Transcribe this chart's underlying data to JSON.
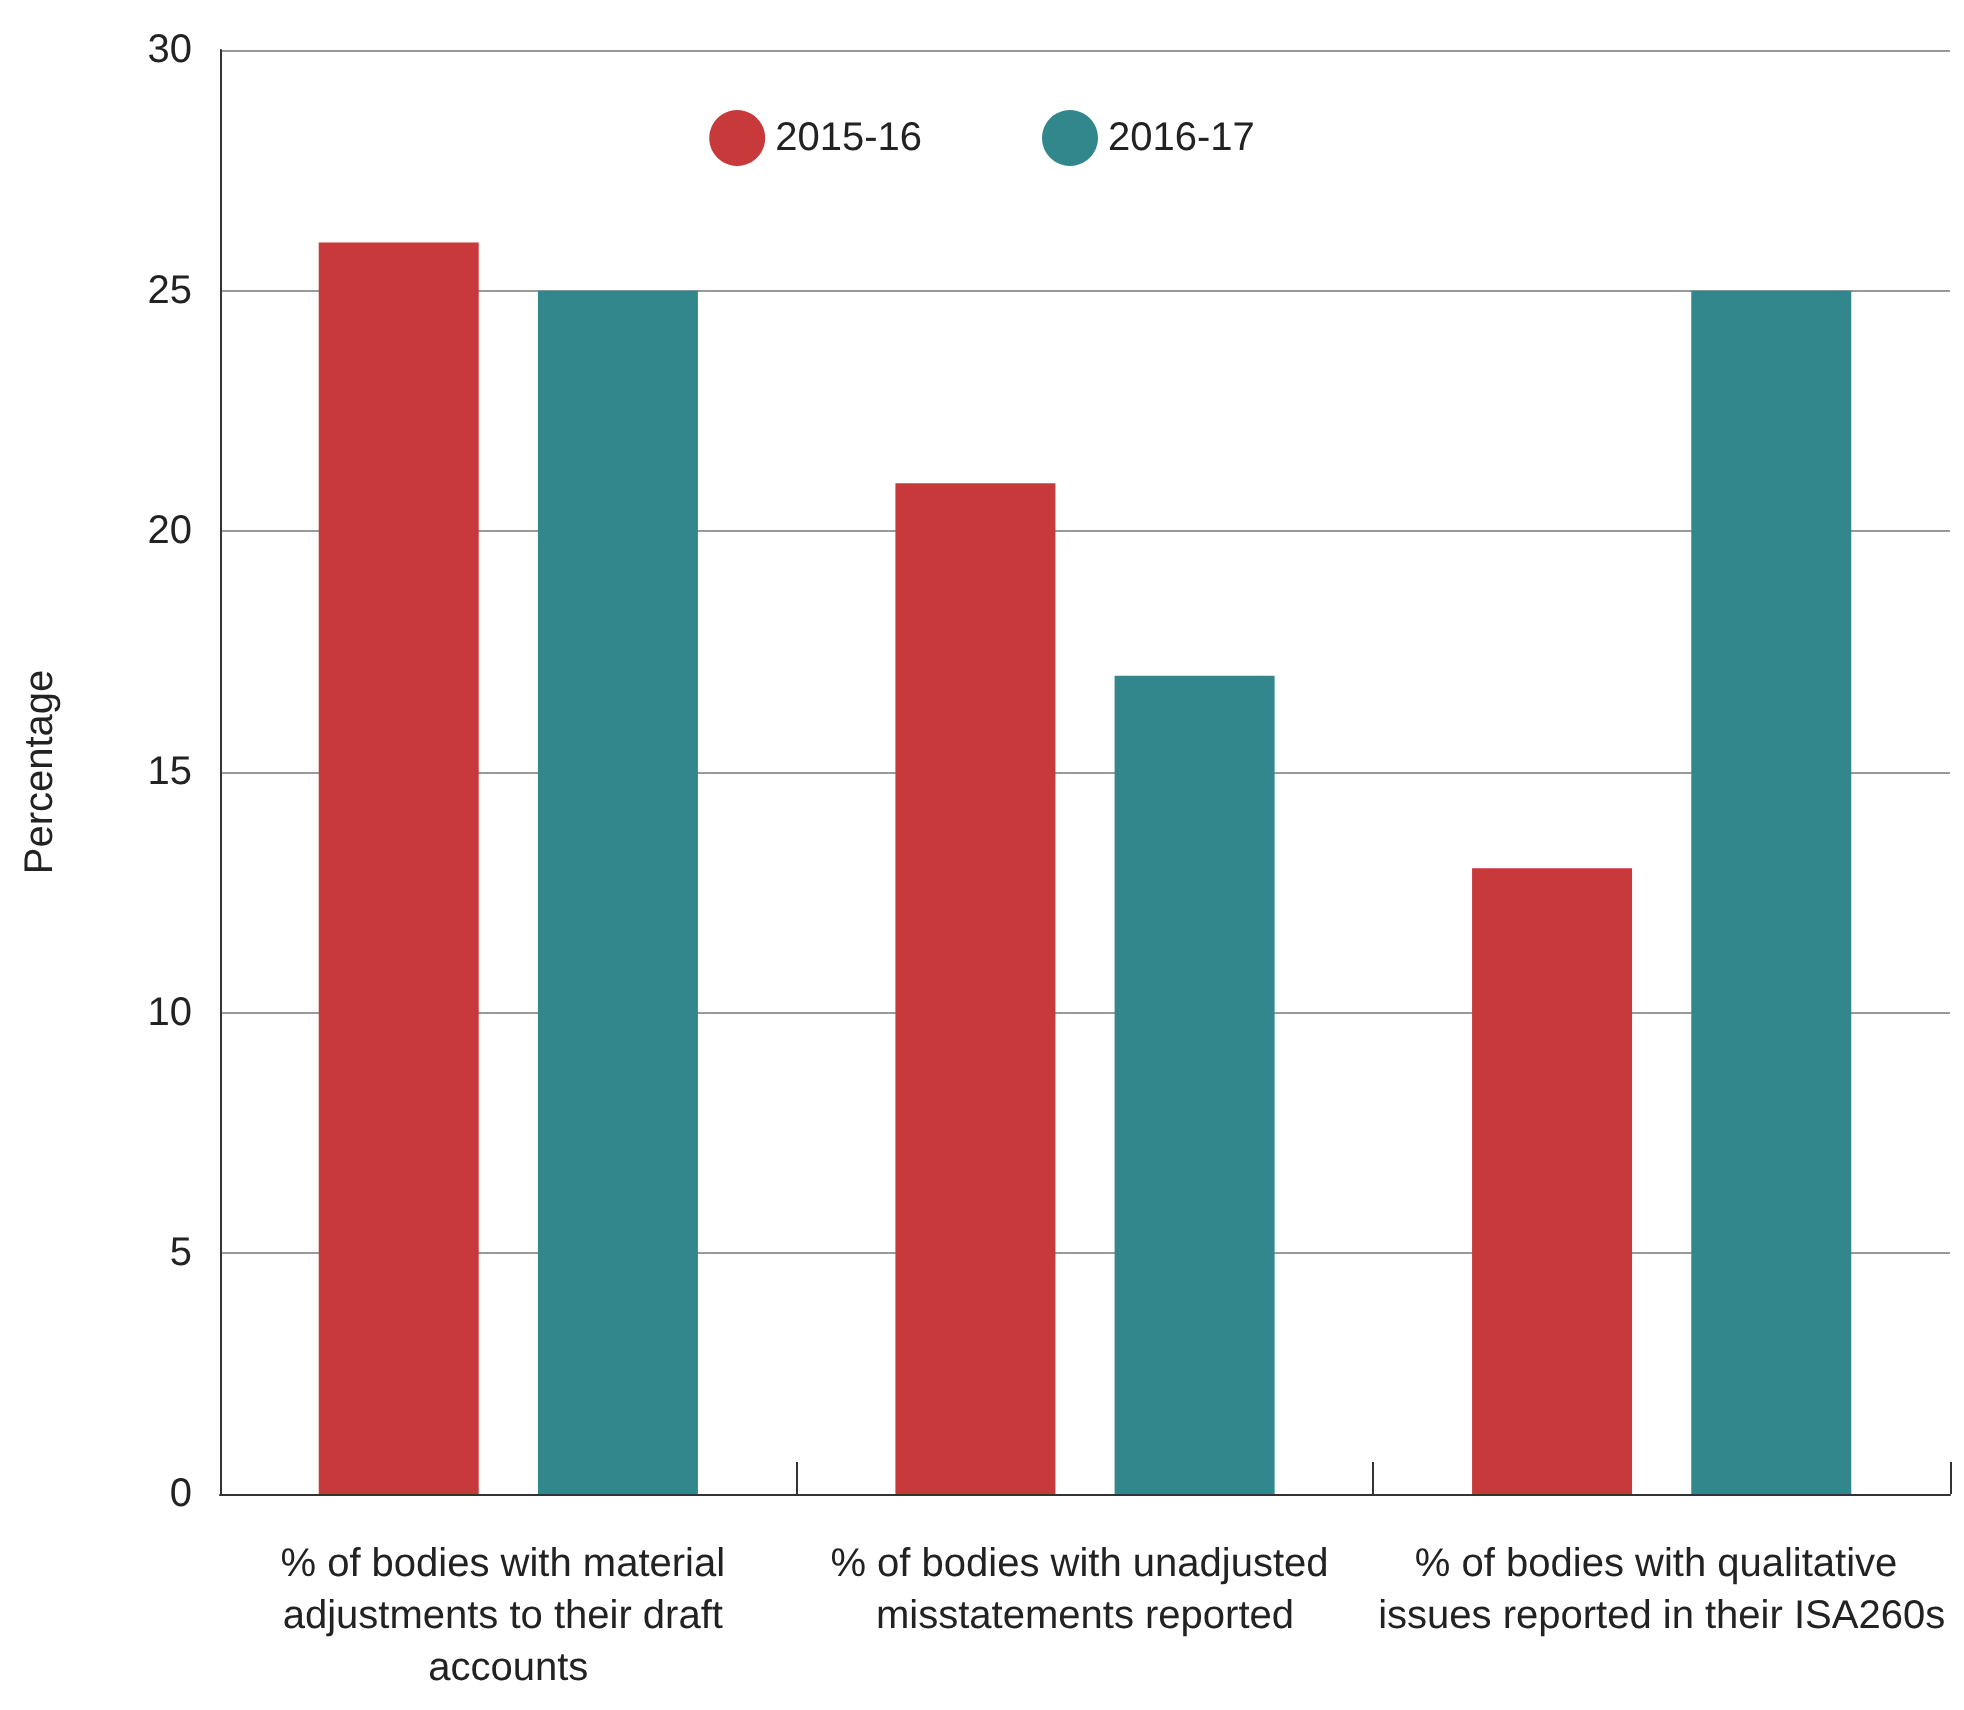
{
  "chart_data": {
    "type": "bar",
    "ylabel": "Percentage",
    "categories": [
      "% of bodies with material adjustments to their draft accounts",
      "% of bodies with unadjusted misstatements reported",
      "% of bodies with qualitative issues reported in their ISA260s"
    ],
    "series": [
      {
        "name": "2015-16",
        "color": "#c8393b",
        "values": [
          26,
          21,
          13
        ]
      },
      {
        "name": "2016-17",
        "color": "#32878c",
        "values": [
          25,
          17,
          25
        ]
      }
    ],
    "ylim": [
      0,
      30
    ],
    "yticks": [
      0,
      5,
      10,
      15,
      20,
      25,
      30
    ],
    "grid": "y",
    "legend": "top"
  }
}
